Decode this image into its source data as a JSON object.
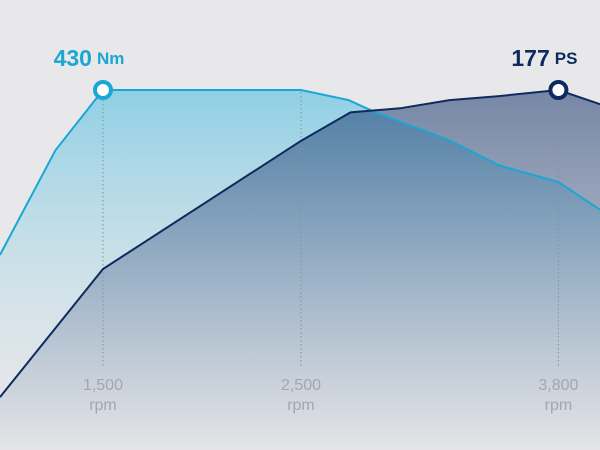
{
  "chart_data": {
    "type": "area",
    "xlim": [
      980,
      4010
    ],
    "ylim": [
      0,
      537.5
    ],
    "y2lim": [
      0,
      221.25
    ],
    "xticks": [
      {
        "value": 1500,
        "label": "1,500"
      },
      {
        "value": 2500,
        "label": "2,500"
      },
      {
        "value": 3800,
        "label": "3,800"
      }
    ],
    "x_unit": "rpm",
    "series": [
      {
        "unit": "Nm",
        "color": "#1aa7d4",
        "axis": "y",
        "x": [
          980,
          1260,
          1500,
          2500,
          2740,
          2870,
          3250,
          3500,
          3800,
          4010
        ],
        "values": [
          233,
          358,
          430,
          430,
          418,
          404,
          370,
          340,
          320,
          287
        ]
      },
      {
        "unit": "PS",
        "color": "#0e2a5e",
        "axis": "y2",
        "x": [
          980,
          1500,
          2500,
          2750,
          3000,
          3250,
          3500,
          3800,
          4010
        ],
        "values": [
          26,
          89,
          152,
          166,
          168,
          172,
          174,
          177,
          170
        ]
      }
    ]
  }
}
